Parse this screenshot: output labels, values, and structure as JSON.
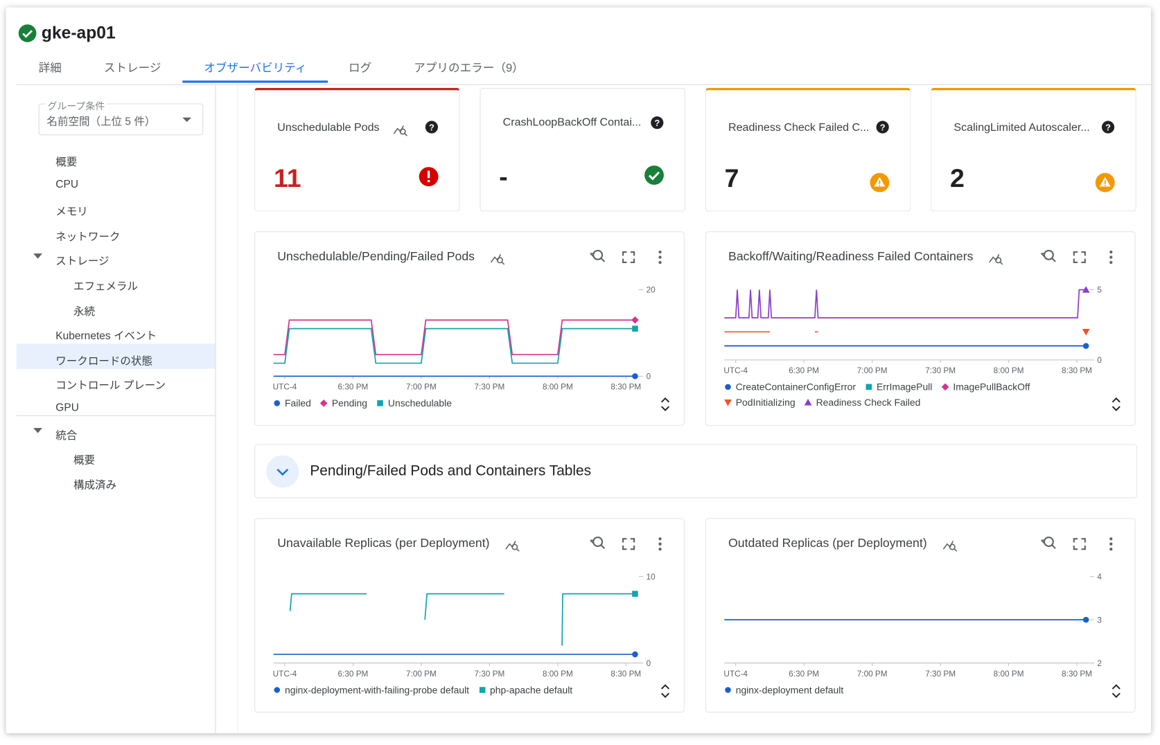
{
  "header": {
    "title": "gke-ap01"
  },
  "tabs": {
    "items": [
      "詳細",
      "ストレージ",
      "オブザーバビリティ",
      "ログ",
      "アプリのエラー（9）"
    ],
    "selected": 2
  },
  "sidebar": {
    "group_label": "グループ条件",
    "group_value": "名前空間（上位 5 件）",
    "items": [
      {
        "label": "概要",
        "level": 0
      },
      {
        "label": "CPU",
        "level": 0
      },
      {
        "label": "メモリ",
        "level": 0
      },
      {
        "label": "ネットワーク",
        "level": 0
      },
      {
        "label": "ストレージ",
        "level": 0,
        "expanded": true
      },
      {
        "label": "エフェメラル",
        "level": 1
      },
      {
        "label": "永続",
        "level": 1
      },
      {
        "label": "Kubernetes イベント",
        "level": 0
      },
      {
        "label": "ワークロードの状態",
        "level": 0,
        "selected": true
      },
      {
        "label": "コントロール プレーン",
        "level": 0
      },
      {
        "label": "GPU",
        "level": 0,
        "divider_after": true
      },
      {
        "label": "統合",
        "level": 0,
        "expanded": true
      },
      {
        "label": "概要",
        "level": 1
      },
      {
        "label": "構成済み",
        "level": 1
      }
    ]
  },
  "scorecards": [
    {
      "title": "Unschedulable Pods",
      "value": 11,
      "status": "error",
      "trend_icon": true
    },
    {
      "title": "CrashLoopBackOff Contai...",
      "value": "-",
      "status": "ok"
    },
    {
      "title": "Readiness Check Failed C...",
      "value": 7,
      "status": "warning"
    },
    {
      "title": "ScalingLimited Autoscaler...",
      "value": 2,
      "status": "warning"
    }
  ],
  "section": {
    "title": "Pending/Failed Pods and Containers Tables"
  },
  "chart_data": [
    {
      "type": "line",
      "title": "Unschedulable/Pending/Failed Pods",
      "x": [
        -5,
        0,
        2,
        38,
        40,
        60,
        62,
        98,
        100,
        120,
        122,
        154
      ],
      "xlim": [
        -5,
        155
      ],
      "xticks": [
        {
          "value": 0,
          "label": "UTC-4"
        },
        {
          "value": 30,
          "label": "6:30 PM"
        },
        {
          "value": 60,
          "label": "7:00 PM"
        },
        {
          "value": 90,
          "label": "7:30 PM"
        },
        {
          "value": 120,
          "label": "8:00 PM"
        },
        {
          "value": 150,
          "label": "8:30 PM"
        }
      ],
      "ylim": [
        0,
        20
      ],
      "yticks": [
        0,
        20
      ],
      "series": [
        {
          "name": "Failed",
          "color": "#1a5fd0",
          "marker": "circle",
          "values": [
            0,
            0,
            0,
            0,
            0,
            0,
            0,
            0,
            0,
            0,
            0,
            0
          ]
        },
        {
          "name": "Pending",
          "color": "#d6348f",
          "marker": "diamond",
          "values": [
            5,
            5,
            13,
            13,
            5,
            5,
            13,
            13,
            5,
            5,
            13,
            13
          ]
        },
        {
          "name": "Unschedulable",
          "color": "#12a4af",
          "marker": "square",
          "values": [
            3,
            3,
            11,
            11,
            3,
            3,
            11,
            11,
            3,
            3,
            11,
            11
          ]
        }
      ]
    },
    {
      "type": "line",
      "title": "Backoff/Waiting/Readiness Failed Containers",
      "x": [
        -5,
        0,
        0.7,
        1.4,
        5.8,
        6.5,
        7.2,
        9.7,
        10.4,
        11.1,
        14.3,
        15,
        15.7,
        34.8,
        35.5,
        36.2,
        150.3,
        151,
        154
      ],
      "xlim": [
        -5,
        155
      ],
      "xticks": [
        {
          "value": 0,
          "label": "UTC-4"
        },
        {
          "value": 30,
          "label": "6:30 PM"
        },
        {
          "value": 60,
          "label": "7:00 PM"
        },
        {
          "value": 90,
          "label": "7:30 PM"
        },
        {
          "value": 120,
          "label": "8:00 PM"
        },
        {
          "value": 150,
          "label": "8:30 PM"
        }
      ],
      "ylim": [
        0,
        5
      ],
      "yticks": [
        0,
        5
      ],
      "series": [
        {
          "name": "ErrImagePull",
          "color": "#12a4af",
          "marker": "square",
          "values": [
            1,
            1,
            1,
            1,
            1,
            1,
            1,
            1,
            1,
            1,
            1,
            1,
            1,
            1,
            1,
            1,
            1,
            1,
            1
          ],
          "end_marker": false
        },
        {
          "name": "ImagePullBackOff",
          "color": "#d6348f",
          "marker": "diamond",
          "values": [
            1,
            1,
            1,
            1,
            1,
            1,
            1,
            1,
            1,
            1,
            1,
            1,
            1,
            1,
            1,
            1,
            1,
            1,
            1
          ],
          "end_marker": false
        },
        {
          "name": "CreateContainerConfigError",
          "color": "#1a5fd0",
          "marker": "circle",
          "values": [
            1,
            1,
            1,
            1,
            1,
            1,
            1,
            1,
            1,
            1,
            1,
            1,
            1,
            1,
            1,
            1,
            1,
            1,
            1
          ]
        },
        {
          "name": "PodInitializing",
          "color": "#f0522e",
          "marker": "triangle-down",
          "values": [
            2,
            2,
            2,
            2,
            2,
            2,
            2,
            2,
            2,
            2,
            2,
            2,
            null,
            2,
            2,
            2,
            null,
            null,
            2
          ]
        },
        {
          "name": "Readiness Check Failed",
          "color": "#8a3fcf",
          "marker": "triangle-up",
          "values": [
            3,
            3,
            5,
            3,
            3,
            5,
            3,
            3,
            5,
            3,
            3,
            5,
            3,
            3,
            5,
            3,
            3,
            5,
            5
          ]
        }
      ],
      "legend_order": [
        2,
        0,
        1,
        3,
        4
      ]
    },
    {
      "type": "line",
      "title": "Unavailable Replicas (per Deployment)",
      "x": [
        -5,
        2.3,
        3,
        36,
        50,
        61.6,
        62.5,
        96.5,
        110,
        121.9,
        122.2,
        154
      ],
      "xlim": [
        -5,
        155
      ],
      "xticks": [
        {
          "value": 0,
          "label": "UTC-4"
        },
        {
          "value": 30,
          "label": "6:30 PM"
        },
        {
          "value": 60,
          "label": "7:00 PM"
        },
        {
          "value": 90,
          "label": "7:30 PM"
        },
        {
          "value": 120,
          "label": "8:00 PM"
        },
        {
          "value": 150,
          "label": "8:30 PM"
        }
      ],
      "ylim": [
        0,
        10
      ],
      "yticks": [
        0,
        10
      ],
      "series": [
        {
          "name": "nginx-deployment-with-failing-probe default",
          "color": "#1a5fd0",
          "marker": "circle",
          "values": [
            1,
            1,
            1,
            1,
            1,
            1,
            1,
            1,
            1,
            1,
            1,
            1
          ]
        },
        {
          "name": "php-apache default",
          "color": "#12a4af",
          "marker": "square",
          "values": [
            null,
            6,
            8,
            8,
            null,
            5,
            8,
            8,
            null,
            2,
            8,
            8
          ]
        }
      ]
    },
    {
      "type": "line",
      "title": "Outdated Replicas (per Deployment)",
      "x": [
        -5,
        154
      ],
      "xlim": [
        -5,
        155
      ],
      "xticks": [
        {
          "value": 0,
          "label": "UTC-4"
        },
        {
          "value": 30,
          "label": "6:30 PM"
        },
        {
          "value": 60,
          "label": "7:00 PM"
        },
        {
          "value": 90,
          "label": "7:30 PM"
        },
        {
          "value": 120,
          "label": "8:00 PM"
        },
        {
          "value": 150,
          "label": "8:30 PM"
        }
      ],
      "ylim": [
        2,
        4
      ],
      "yticks": [
        2,
        3,
        4
      ],
      "series": [
        {
          "name": "nginx-deployment default",
          "color": "#1a5fd0",
          "marker": "circle",
          "values": [
            3,
            3
          ]
        }
      ]
    }
  ]
}
